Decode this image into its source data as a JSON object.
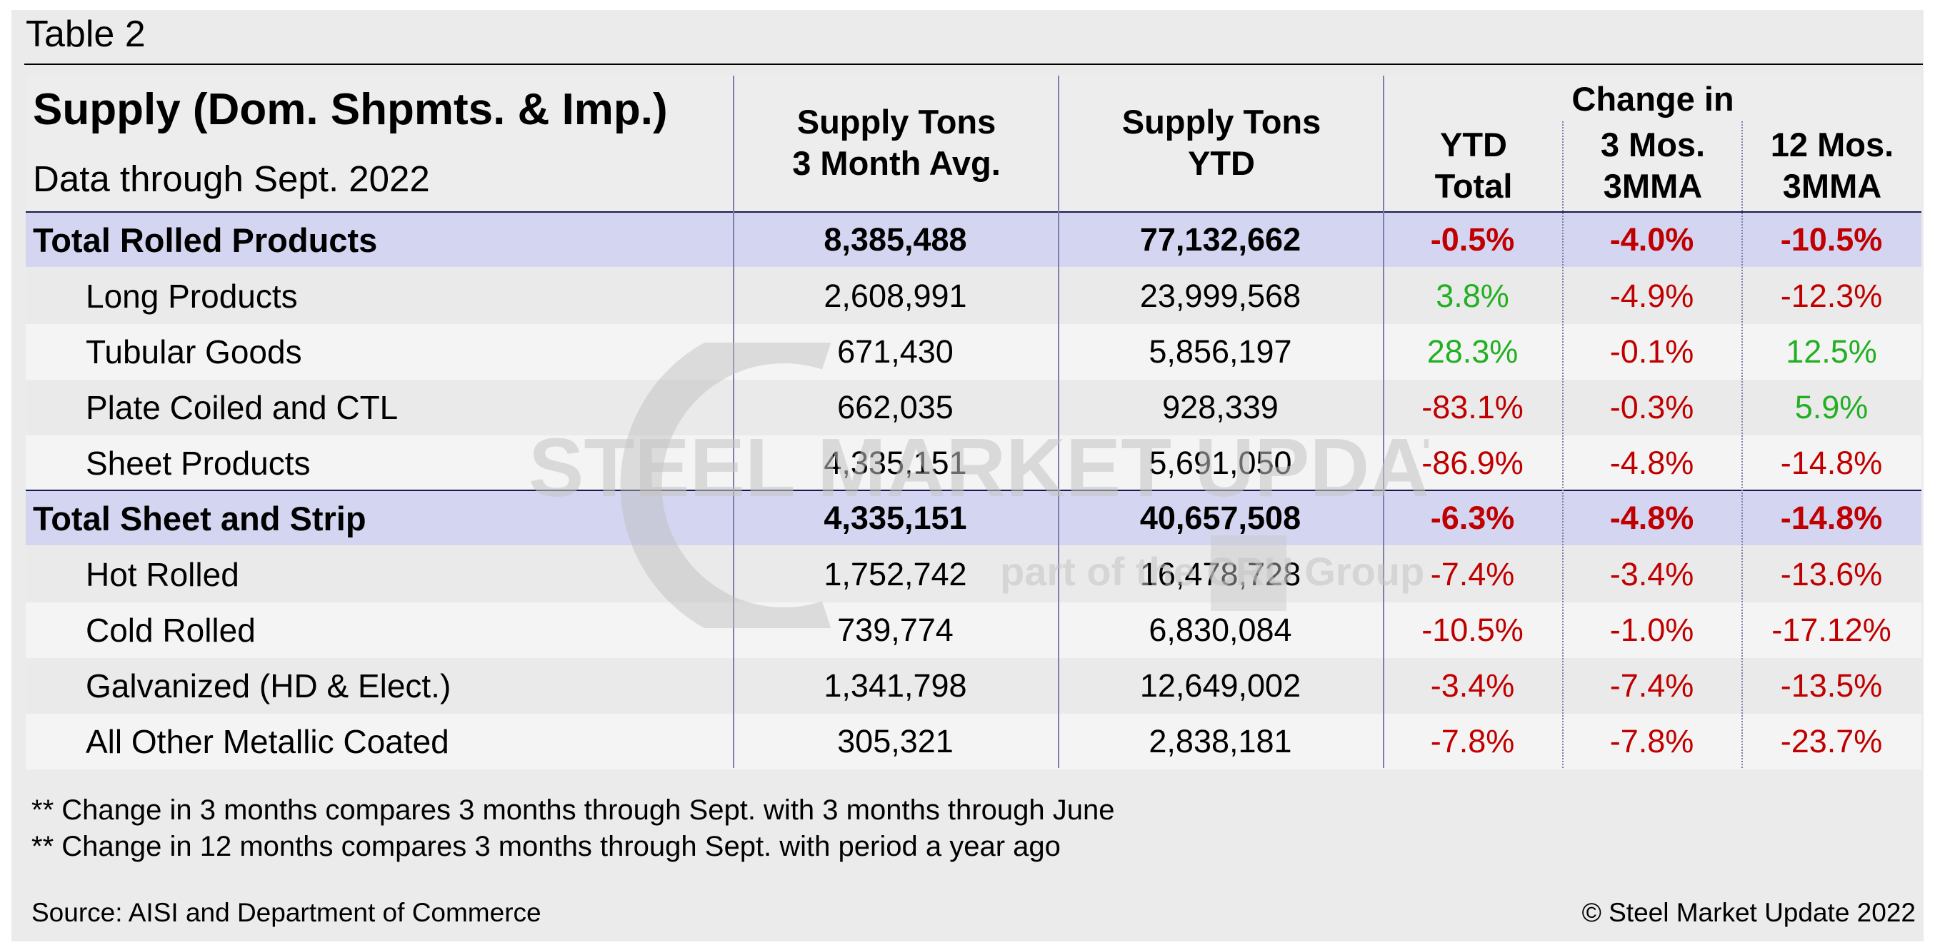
{
  "caption": "Table 2",
  "header": {
    "title": "Supply (Dom. Shpmts. & Imp.)",
    "subtitle": "Data through Sept. 2022",
    "col1": [
      "Supply Tons",
      "3 Month Avg."
    ],
    "col2": [
      "Supply Tons",
      "YTD"
    ],
    "group": "Change in",
    "col3": [
      "YTD",
      "Total"
    ],
    "col4": [
      "3 Mos.",
      "3MMA"
    ],
    "col5": [
      "12 Mos.",
      "3MMA"
    ]
  },
  "rows": [
    {
      "label": "Total Rolled Products",
      "avg": "8,385,488",
      "ytd": "77,132,662",
      "chg_ytd": "-0.5%",
      "chg_3": "-4.0%",
      "chg_12": "-10.5%"
    },
    {
      "label": "Long Products",
      "avg": "2,608,991",
      "ytd": "23,999,568",
      "chg_ytd": "3.8%",
      "chg_3": "-4.9%",
      "chg_12": "-12.3%"
    },
    {
      "label": "Tubular Goods",
      "avg": "671,430",
      "ytd": "5,856,197",
      "chg_ytd": "28.3%",
      "chg_3": "-0.1%",
      "chg_12": "12.5%"
    },
    {
      "label": "Plate Coiled and CTL",
      "avg": "662,035",
      "ytd": "928,339",
      "chg_ytd": "-83.1%",
      "chg_3": "-0.3%",
      "chg_12": "5.9%"
    },
    {
      "label": "Sheet Products",
      "avg": "4,335,151",
      "ytd": "5,691,050",
      "chg_ytd": "-86.9%",
      "chg_3": "-4.8%",
      "chg_12": "-14.8%"
    },
    {
      "label": "Total Sheet and Strip",
      "avg": "4,335,151",
      "ytd": "40,657,508",
      "chg_ytd": "-6.3%",
      "chg_3": "-4.8%",
      "chg_12": "-14.8%"
    },
    {
      "label": "Hot Rolled",
      "avg": "1,752,742",
      "ytd": "16,478,728",
      "chg_ytd": "-7.4%",
      "chg_3": "-3.4%",
      "chg_12": "-13.6%"
    },
    {
      "label": "Cold Rolled",
      "avg": "739,774",
      "ytd": "6,830,084",
      "chg_ytd": "-10.5%",
      "chg_3": "-1.0%",
      "chg_12": "-17.12%"
    },
    {
      "label": "Galvanized (HD & Elect.)",
      "avg": "1,341,798",
      "ytd": "12,649,002",
      "chg_ytd": "-3.4%",
      "chg_3": "-7.4%",
      "chg_12": "-13.5%"
    },
    {
      "label": "All Other Metallic Coated",
      "avg": "305,321",
      "ytd": "2,838,181",
      "chg_ytd": "-7.8%",
      "chg_3": "-7.8%",
      "chg_12": "-23.7%"
    }
  ],
  "notes": [
    "** Change in 3 months compares 3 months through Sept. with 3 months through June",
    "** Change in 12 months compares 3 months through Sept. with period a year ago"
  ],
  "source": "Source: AISI and Department of Commerce",
  "copyright": "© Steel Market Update 2022",
  "watermark": {
    "brand": "STEEL MARKET UPDATE",
    "tagline": "part of the CRU Group"
  },
  "colors": {
    "negative": "#c00000",
    "positive": "#22b022",
    "total_row_bg": "#d4d6f1"
  }
}
